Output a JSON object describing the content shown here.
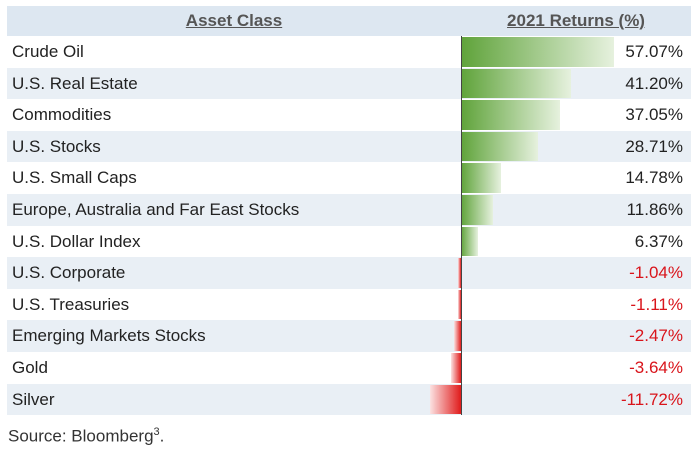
{
  "table": {
    "header_asset": "Asset Class",
    "header_returns": "2021 Returns (%)"
  },
  "chart_data": {
    "type": "bar",
    "title": "",
    "xlabel": "",
    "ylabel": "",
    "categories": [
      "Crude Oil",
      "U.S. Real Estate",
      "Commodities",
      "U.S. Stocks",
      "U.S. Small Caps",
      "Europe, Australia and Far East Stocks",
      "U.S. Dollar Index",
      "U.S. Corporate",
      "U.S. Treasuries",
      "Emerging Markets Stocks",
      "Gold",
      "Silver"
    ],
    "values": [
      57.07,
      41.2,
      37.05,
      28.71,
      14.78,
      11.86,
      6.37,
      -1.04,
      -1.11,
      -2.47,
      -3.64,
      -11.72
    ],
    "value_labels": [
      "57.07%",
      "41.20%",
      "37.05%",
      "28.71%",
      "14.78%",
      "11.86%",
      "6.37%",
      "-1.04%",
      "-1.11%",
      "-2.47%",
      "-3.64%",
      "-11.72%"
    ],
    "colors": {
      "positive": "#5fa33a",
      "negative": "#e01b1b"
    },
    "grid": false
  },
  "source": {
    "text": "Source: Bloomberg",
    "footnote": "3",
    "suffix": "."
  }
}
